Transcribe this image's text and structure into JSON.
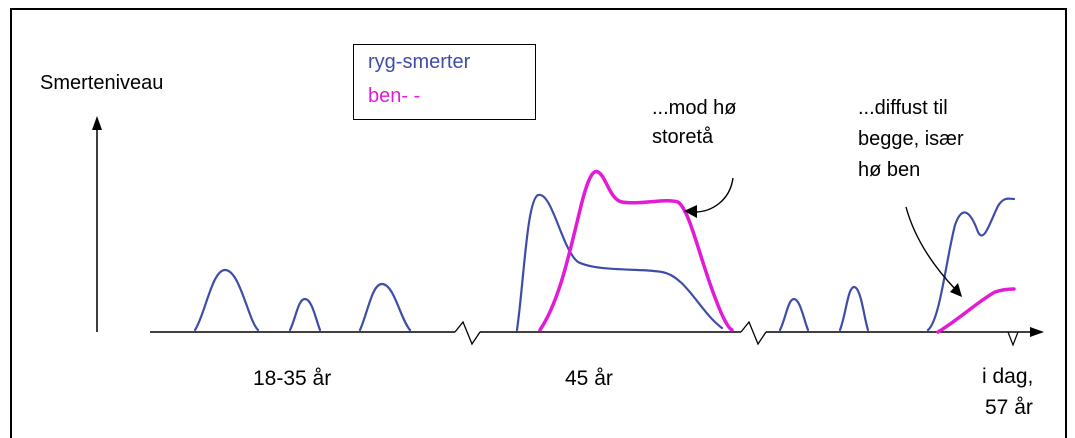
{
  "colors": {
    "back_pain": "#3f4da8",
    "leg_pain": "#e21bd6",
    "axis": "#000000"
  },
  "labels": {
    "y_axis": "Smerteniveau",
    "period_1": "18-35 år",
    "period_2": "45 år",
    "period_3_line1": "i dag,",
    "period_3_line2": "57 år",
    "annotation_1_line1": "...mod hø",
    "annotation_1_line2": "storetå",
    "annotation_2_line1": "...diffust til",
    "annotation_2_line2": "begge, især",
    "annotation_2_line3": "hø ben"
  },
  "legend": {
    "series_1": "ryg-smerter",
    "series_2": "ben-    -"
  }
}
